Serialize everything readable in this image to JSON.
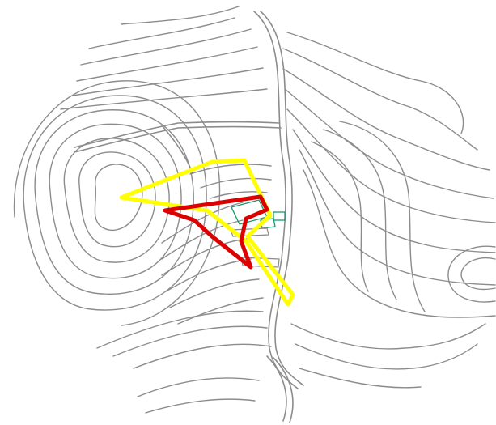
{
  "map": {
    "colors": {
      "background": "#ffffff",
      "contour": "#8c8c8c",
      "road": "#8c8c8c",
      "outer_boundary": "#ffff00",
      "inner_boundary": "#dd0000",
      "buildings": "#1a9a6a"
    }
  }
}
